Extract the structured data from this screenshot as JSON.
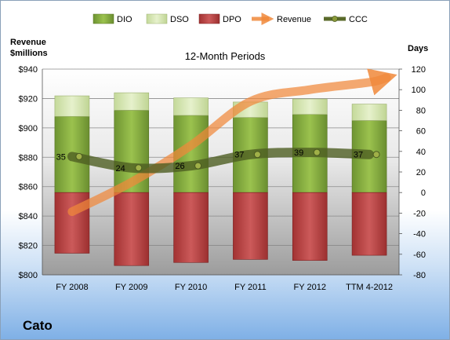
{
  "company": "Cato",
  "chart_data": {
    "type": "bar",
    "title": "12-Month Periods",
    "y_left_label": [
      "Revenue",
      "$millions"
    ],
    "y_right_label": "Days",
    "categories": [
      "FY 2008",
      "FY 2009",
      "FY 2010",
      "FY 2011",
      "FY 2012",
      "TTM 4-2012"
    ],
    "y_left": {
      "min": 800,
      "max": 940,
      "step": 20,
      "tick_labels": [
        "$800",
        "$820",
        "$840",
        "$860",
        "$880",
        "$900",
        "$920",
        "$940"
      ]
    },
    "y_right": {
      "min": -80,
      "max": 120,
      "step": 20,
      "tick_labels": [
        "-80",
        "-60",
        "-40",
        "-20",
        "0",
        "20",
        "40",
        "60",
        "80",
        "100",
        "120"
      ]
    },
    "legend": {
      "placement": "top",
      "items": [
        {
          "label": "DIO",
          "kind": "box",
          "color": "#7aa23a"
        },
        {
          "label": "DSO",
          "kind": "box",
          "color": "#d4e6a8"
        },
        {
          "label": "DPO",
          "kind": "box",
          "color": "#b03a3a"
        },
        {
          "label": "Revenue",
          "kind": "arrow",
          "color": "#f0883a"
        },
        {
          "label": "CCC",
          "kind": "line",
          "color": "#5a6a2a"
        }
      ]
    },
    "series": [
      {
        "name": "DIO",
        "axis": "right",
        "values": [
          74,
          80,
          75,
          73,
          76,
          70
        ]
      },
      {
        "name": "DSO",
        "axis": "right",
        "values": [
          20,
          17,
          17,
          15,
          15,
          16
        ]
      },
      {
        "name": "DPO",
        "axis": "right",
        "values": [
          -59,
          -71,
          -68,
          -65,
          -66,
          -61
        ]
      },
      {
        "name": "Revenue",
        "axis": "left",
        "values": [
          843,
          863,
          888,
          918,
          926,
          931
        ]
      },
      {
        "name": "CCC",
        "axis": "right",
        "values": [
          35,
          24,
          26,
          37,
          39,
          37
        ]
      }
    ],
    "ccc_labels": [
      "35",
      "24",
      "26",
      "37",
      "39",
      "37"
    ],
    "grid": true
  }
}
